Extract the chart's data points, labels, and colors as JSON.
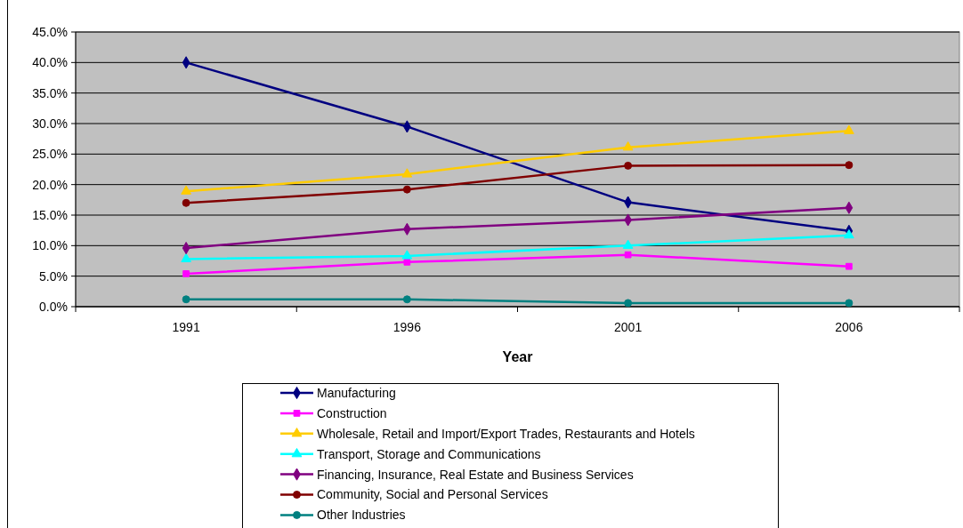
{
  "chart_data": {
    "type": "line",
    "xlabel": "Year",
    "categories": [
      "1991",
      "1996",
      "2001",
      "2006"
    ],
    "series": [
      {
        "name": "Manufacturing",
        "color": "#000080",
        "marker": "diamond",
        "values": [
          40.0,
          29.5,
          17.1,
          12.4
        ]
      },
      {
        "name": "Construction",
        "color": "#ff00ff",
        "marker": "square",
        "values": [
          5.4,
          7.3,
          8.5,
          6.6
        ]
      },
      {
        "name": "Wholesale, Retail and Import/Export Trades, Restaurants and Hotels",
        "color": "#ffcc00",
        "marker": "triangle",
        "values": [
          18.9,
          21.7,
          26.1,
          28.8
        ]
      },
      {
        "name": "Transport, Storage and Communications",
        "color": "#00ffff",
        "marker": "triangle",
        "values": [
          7.8,
          8.3,
          10.0,
          11.7
        ]
      },
      {
        "name": "Financing, Insurance, Real Estate and Business Services",
        "color": "#800080",
        "marker": "diamond",
        "values": [
          9.6,
          12.7,
          14.2,
          16.2
        ]
      },
      {
        "name": "Community, Social and Personal Services",
        "color": "#800000",
        "marker": "circle",
        "values": [
          17.0,
          19.2,
          23.1,
          23.2
        ]
      },
      {
        "name": "Other Industries",
        "color": "#008080",
        "marker": "circle",
        "values": [
          1.2,
          1.2,
          0.6,
          0.6
        ]
      }
    ],
    "ylim": [
      0,
      45
    ],
    "yticks": [
      {
        "value": 0,
        "label": "0.0%"
      },
      {
        "value": 5,
        "label": "5.0%"
      },
      {
        "value": 10,
        "label": "10.0%"
      },
      {
        "value": 15,
        "label": "15.0%"
      },
      {
        "value": 20,
        "label": "20.0%"
      },
      {
        "value": 25,
        "label": "25.0%"
      },
      {
        "value": 30,
        "label": "30.0%"
      },
      {
        "value": 35,
        "label": "35.0%"
      },
      {
        "value": 40,
        "label": "40.0%"
      },
      {
        "value": 45,
        "label": "45.0%"
      }
    ],
    "grid": "y",
    "legend": "bottom",
    "line_style": "solid"
  }
}
